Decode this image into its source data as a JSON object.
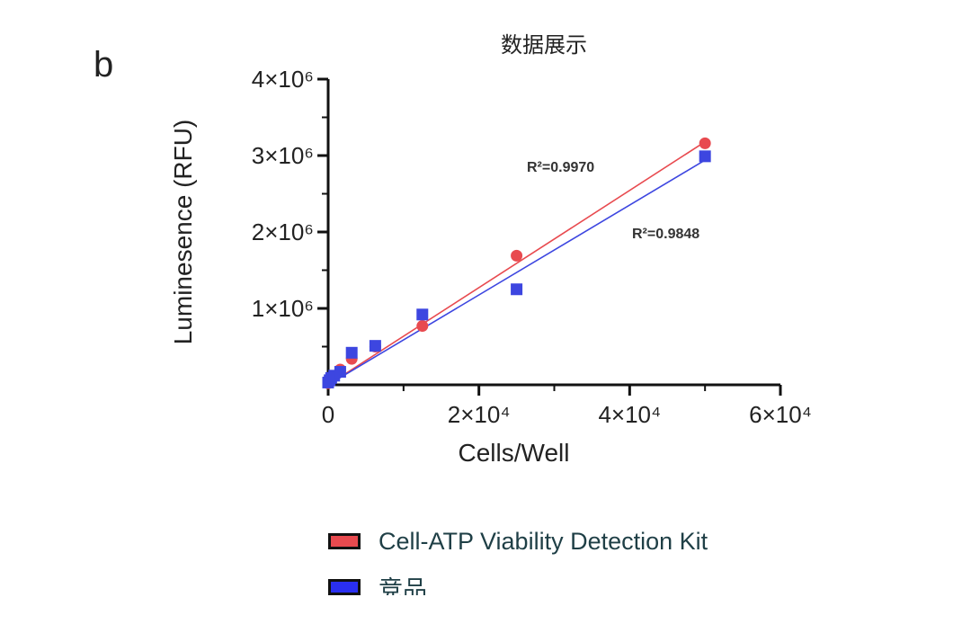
{
  "panel_letter": "b",
  "chart_data": {
    "type": "scatter",
    "title": "数据展示",
    "xlabel": "Cells/Well",
    "ylabel": "Luminesence (RFU)",
    "xlim": [
      0,
      60000
    ],
    "ylim": [
      0,
      4000000
    ],
    "x_ticks": [
      {
        "value": 0,
        "label": "0"
      },
      {
        "value": 20000,
        "label": "2×10⁴"
      },
      {
        "value": 40000,
        "label": "4×10⁴"
      },
      {
        "value": 60000,
        "label": "6×10⁴"
      }
    ],
    "y_ticks": [
      {
        "value": 1000000,
        "label": "1×10⁶"
      },
      {
        "value": 2000000,
        "label": "2×10⁶"
      },
      {
        "value": 3000000,
        "label": "3×10⁶"
      },
      {
        "value": 4000000,
        "label": "4×10⁶"
      }
    ],
    "series": [
      {
        "name": "Cell-ATP Viability Detection Kit",
        "color": "#e84a4f",
        "marker": "circle",
        "x": [
          0,
          200,
          400,
          800,
          1600,
          3125,
          6250,
          12500,
          25000,
          50000
        ],
        "y": [
          20000,
          40000,
          70000,
          110000,
          200000,
          340000,
          500000,
          770000,
          1690000,
          3160000
        ],
        "fit": {
          "x0": 0,
          "y0": 0,
          "x1": 50000,
          "y1": 3180000
        },
        "r2_label": "R²=0.9970"
      },
      {
        "name": "竞品",
        "color": "#3d46e0",
        "marker": "square",
        "x": [
          0,
          200,
          400,
          800,
          1600,
          3125,
          6250,
          12500,
          25000,
          50000
        ],
        "y": [
          30000,
          60000,
          90000,
          120000,
          170000,
          420000,
          510000,
          920000,
          1250000,
          2990000
        ],
        "fit": {
          "x0": 0,
          "y0": 0,
          "x1": 50000,
          "y1": 2940000
        },
        "r2_label": "R²=0.9848"
      }
    ]
  },
  "legend": [
    {
      "label": "Cell-ATP Viability Detection Kit",
      "color": "#e84a4f"
    },
    {
      "label": "竞品",
      "color": "#2a2ff0"
    }
  ]
}
